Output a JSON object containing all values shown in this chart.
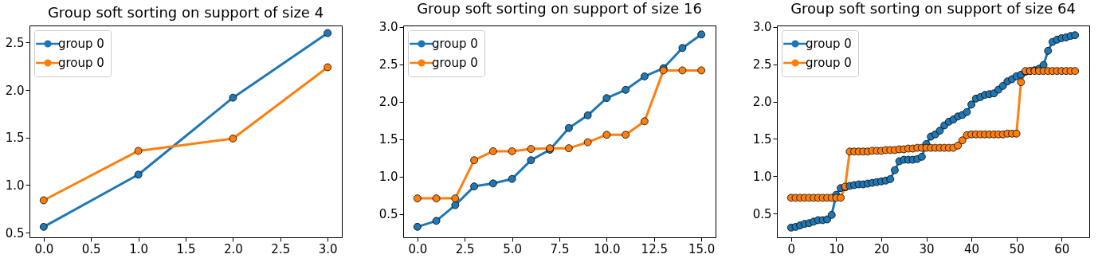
{
  "chart_data": [
    {
      "type": "line",
      "title": "Group soft sorting on support of size 4",
      "x": [
        0,
        1,
        2,
        3
      ],
      "marker": "circle",
      "legend": "top left",
      "grid": false,
      "xlim": [
        -0.15,
        3.15
      ],
      "xticks": [
        {
          "value": 0,
          "label": "0.0"
        },
        0.5,
        {
          "value": 1,
          "label": "1.0"
        },
        1.5,
        {
          "value": 2,
          "label": "2.0"
        },
        2.5,
        {
          "value": 3,
          "label": "3.0"
        }
      ],
      "ylim": [
        0.45,
        2.68
      ],
      "yticks": [
        0.5,
        {
          "value": 1,
          "label": "1.0"
        },
        1.5,
        {
          "value": 2,
          "label": "2.0"
        },
        2.5
      ],
      "series": [
        {
          "name": "group 0",
          "color": "#1f77b4",
          "values": [
            0.56,
            1.11,
            1.92,
            2.6
          ]
        },
        {
          "name": "group 0",
          "color": "#ff7f0e",
          "values": [
            0.84,
            1.36,
            1.49,
            2.24
          ]
        }
      ]
    },
    {
      "type": "line",
      "title": "Group soft sorting on support of size 16",
      "x": [
        0,
        1,
        2,
        3,
        4,
        5,
        6,
        7,
        8,
        9,
        10,
        11,
        12,
        13,
        14,
        15
      ],
      "marker": "circle",
      "legend": "top left",
      "grid": false,
      "xlim": [
        -0.75,
        15.75
      ],
      "xticks": [
        {
          "value": 0,
          "label": "0.0"
        },
        2.5,
        {
          "value": 5,
          "label": "5.0"
        },
        7.5,
        {
          "value": 10,
          "label": "10.0"
        },
        12.5,
        {
          "value": 15,
          "label": "15.0"
        }
      ],
      "ylim": [
        0.19,
        3.02
      ],
      "yticks": [
        0.5,
        {
          "value": 1,
          "label": "1.0"
        },
        1.5,
        {
          "value": 2,
          "label": "2.0"
        },
        2.5,
        {
          "value": 3,
          "label": "3.0"
        }
      ],
      "series": [
        {
          "name": "group 0",
          "color": "#1f77b4",
          "values": [
            0.33,
            0.41,
            0.62,
            0.87,
            0.91,
            0.97,
            1.22,
            1.36,
            1.65,
            1.82,
            2.05,
            2.16,
            2.34,
            2.45,
            2.72,
            2.9
          ]
        },
        {
          "name": "group 0",
          "color": "#ff7f0e",
          "values": [
            0.71,
            0.71,
            0.71,
            1.22,
            1.34,
            1.34,
            1.37,
            1.38,
            1.38,
            1.46,
            1.56,
            1.56,
            1.74,
            2.42,
            2.42,
            2.42
          ]
        }
      ]
    },
    {
      "type": "line",
      "title": "Group soft sorting on support of size 64",
      "x": [
        0,
        1,
        2,
        3,
        4,
        5,
        6,
        7,
        8,
        9,
        10,
        11,
        12,
        13,
        14,
        15,
        16,
        17,
        18,
        19,
        20,
        21,
        22,
        23,
        24,
        25,
        26,
        27,
        28,
        29,
        30,
        31,
        32,
        33,
        34,
        35,
        36,
        37,
        38,
        39,
        40,
        41,
        42,
        43,
        44,
        45,
        46,
        47,
        48,
        49,
        50,
        51,
        52,
        53,
        54,
        55,
        56,
        57,
        58,
        59,
        60,
        61,
        62,
        63
      ],
      "marker": "circle",
      "legend": "top left",
      "grid": false,
      "xlim": [
        -3.15,
        66.15
      ],
      "xticks": [
        0,
        10,
        20,
        30,
        40,
        50,
        60
      ],
      "ylim": [
        0.18,
        3.02
      ],
      "yticks": [
        0.5,
        {
          "value": 1,
          "label": "1.0"
        },
        1.5,
        {
          "value": 2,
          "label": "2.0"
        },
        2.5,
        {
          "value": 3,
          "label": "3.0"
        }
      ],
      "series": [
        {
          "name": "group 0",
          "color": "#1f77b4",
          "values": [
            0.31,
            0.32,
            0.34,
            0.36,
            0.37,
            0.39,
            0.41,
            0.41,
            0.42,
            0.48,
            0.75,
            0.84,
            0.85,
            0.87,
            0.88,
            0.89,
            0.89,
            0.9,
            0.91,
            0.92,
            0.93,
            0.94,
            0.96,
            1.08,
            1.2,
            1.22,
            1.22,
            1.22,
            1.23,
            1.26,
            1.43,
            1.53,
            1.56,
            1.61,
            1.68,
            1.73,
            1.76,
            1.8,
            1.82,
            1.86,
            1.96,
            2.04,
            2.06,
            2.09,
            2.1,
            2.11,
            2.16,
            2.21,
            2.27,
            2.3,
            2.34,
            2.36,
            2.4,
            2.41,
            2.42,
            2.44,
            2.49,
            2.68,
            2.8,
            2.83,
            2.85,
            2.86,
            2.88,
            2.89
          ]
        },
        {
          "name": "group 0",
          "color": "#ff7f0e",
          "values": [
            0.71,
            0.71,
            0.71,
            0.71,
            0.71,
            0.71,
            0.71,
            0.71,
            0.71,
            0.71,
            0.71,
            0.71,
            0.86,
            1.33,
            1.33,
            1.33,
            1.33,
            1.33,
            1.34,
            1.34,
            1.34,
            1.35,
            1.35,
            1.35,
            1.36,
            1.36,
            1.37,
            1.37,
            1.38,
            1.38,
            1.38,
            1.38,
            1.38,
            1.38,
            1.38,
            1.38,
            1.38,
            1.41,
            1.48,
            1.55,
            1.56,
            1.56,
            1.56,
            1.56,
            1.56,
            1.56,
            1.56,
            1.56,
            1.57,
            1.57,
            1.57,
            2.26,
            2.41,
            2.41,
            2.41,
            2.41,
            2.41,
            2.41,
            2.41,
            2.41,
            2.41,
            2.41,
            2.41,
            2.41
          ]
        }
      ]
    }
  ]
}
